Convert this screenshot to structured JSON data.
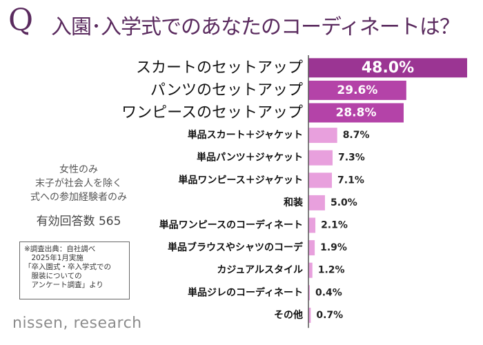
{
  "title": {
    "q": "Q",
    "text": "入園･入学式でのあなたのコーディネートは？"
  },
  "notes": {
    "lines": [
      "女性のみ",
      "末子が社会人を除く",
      "式への参加経験者のみ"
    ],
    "count": "有効回答数 565"
  },
  "source": {
    "lines": [
      "※調査出典：自社調べ",
      "　2025年1月実施",
      "「卒入園式・卒入学式での",
      "　服装についての",
      "　アンケート調査」より"
    ]
  },
  "brand": "nissen, research",
  "colors": {
    "top": "#9b3593",
    "mid": "#b443a8",
    "light": "#e8a0dd",
    "axis": "#555555"
  },
  "chart_data": {
    "type": "bar",
    "orientation": "horizontal",
    "title": "入園･入学式でのあなたのコーディネートは？",
    "unit": "%",
    "xlim": [
      0,
      48
    ],
    "categories": [
      "スカートのセットアップ",
      "パンツのセットアップ",
      "ワンピースのセットアップ",
      "単品スカート＋ジャケット",
      "単品パンツ＋ジャケット",
      "単品ワンピース＋ジャケット",
      "和装",
      "単品ワンピースのコーディネート",
      "単品ブラウスやシャツのコーデ",
      "カジュアルスタイル",
      "単品ジレのコーディネート",
      "その他"
    ],
    "values": [
      48.0,
      29.6,
      28.8,
      8.7,
      7.3,
      7.1,
      5.0,
      2.1,
      1.9,
      1.2,
      0.4,
      0.7
    ],
    "labels": [
      "48.0%",
      "29.6%",
      "28.8%",
      "8.7%",
      "7.3%",
      "7.1%",
      "5.0%",
      "2.1%",
      "1.9%",
      "1.2%",
      "0.4%",
      "0.7%"
    ]
  }
}
